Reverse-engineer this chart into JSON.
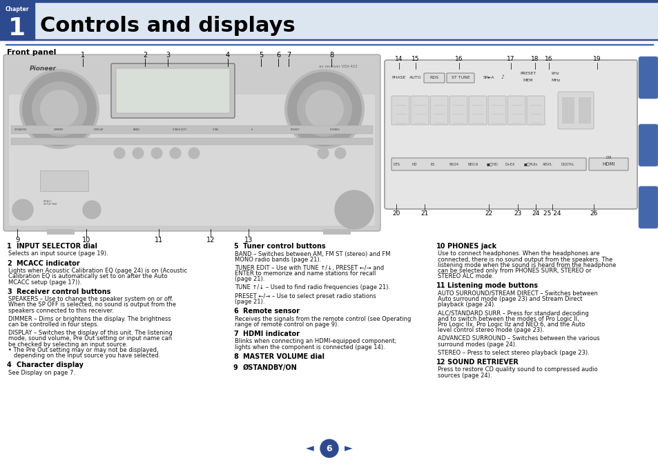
{
  "page_bg": "#ffffff",
  "header_bg": "#dce6f1",
  "header_border": "#2e4a8e",
  "chapter_box_bg": "#2e4a8e",
  "chapter_text": "Chapter",
  "chapter_num": "1",
  "title": "Controls and displays",
  "section_title": "Front panel",
  "nav_circle_color": "#2e4a8e",
  "nav_page_num": "6",
  "top_stripe_color": "#2e4a8e",
  "header_line_color": "#3a6aaa",
  "col1_items": [
    [
      "1",
      "INPUT SELECTOR dial",
      "Selects an input source (page 19)."
    ],
    [
      "2",
      "MCACC indicator",
      "Lights when Acoustic Calibration EQ (page 24) is on (Acoustic\nCalibration EQ is automatically set to on after the Auto\nMCACC setup (page 17))."
    ],
    [
      "3",
      "Receiver control buttons",
      "SPEAKERS – Use to change the speaker system on or off.\nWhen the SP OFF is selected, no sound is output from the\nspeakers connected to this receiver.\n\nDIMMER – Dims or brightens the display. The brightness\ncan be controlled in four steps.\n\nDISPLAY – Switches the display of this unit. The listening\nmode, sound volume, Pre Out setting or input name can\nbe checked by selecting an input source.\n• The Pre Out setting may or may not be displayed,\n   depending on the input source you have selected."
    ],
    [
      "4",
      "Character display",
      "See Display on page 7."
    ]
  ],
  "col2_items": [
    [
      "5",
      "Tuner control buttons",
      "BAND – Switches between AM, FM ST (stereo) and FM\nMONO radio bands (page 21).\n\nTUNER EDIT – Use with TUNE ↑/↓, PRESET ←/→ and\nENTER to memorize and name stations for recall\n(page 21).\n\nTUNE ↑/↓ – Used to find radio frequencies (page 21).\n\nPRESET ←/→ – Use to select preset radio stations\n(page 21)."
    ],
    [
      "6",
      "Remote sensor",
      "Receives the signals from the remote control (see Operating\nrange of remote control on page 9)."
    ],
    [
      "7",
      "HDMI indicator",
      "Blinks when connecting an HDMI-equipped component;\nlights when the component is connected (page 14)."
    ],
    [
      "8",
      "MASTER VOLUME dial",
      ""
    ],
    [
      "9",
      "ØSTANDBY/ON",
      ""
    ]
  ],
  "col3_items": [
    [
      "10",
      "PHONES jack",
      "Use to connect headphones. When the headphones are\nconnected, there is no sound output from the speakers. The\nlistening mode when the sound is heard from the headphone\ncan be selected only from PHONES SURR, STEREO or\nSTEREO ALC mode."
    ],
    [
      "11",
      "Listening mode buttons",
      "AUTO SURROUND/STREAM DIRECT – Switches between\nAuto surround mode (page 23) and Stream Direct\nplayback (page 24).\n\nALC/STANDARD SURR – Press for standard decoding\nand to switch between the modes of Pro Logic II, \nPro Logic IIx, Pro Logic IIz and NEO:6, and the Auto\nlevel control stereo mode (page 23).\n\nADVANCED SURROUND – Switches between the various\nsurround modes (page 24).\n\nSTEREO – Press to select stereo playback (page 23)."
    ],
    [
      "12",
      "SOUND RETRIEVER",
      "Press to restore CD quality sound to compressed audio\nsources (page 24)."
    ]
  ]
}
